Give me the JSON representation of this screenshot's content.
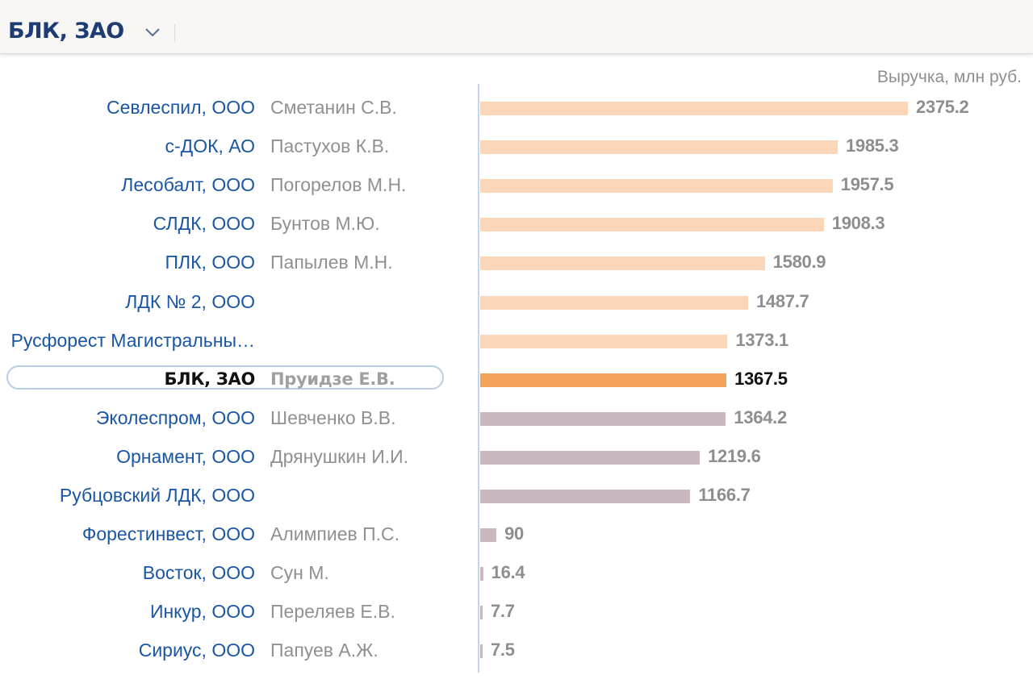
{
  "header": {
    "company_title": "БЛК, ЗАО"
  },
  "chart_data": {
    "type": "bar",
    "orientation": "horizontal",
    "unit_label": "Выручка, млн руб.",
    "xlim": [
      0,
      2375.2
    ],
    "grid": false,
    "highlighted_category": "БЛК, ЗАО",
    "colors": {
      "higher": "#fcd6b9",
      "selected": "#f3a25c",
      "lower": "#c9b8c0"
    },
    "rows": [
      {
        "company": "Севлеспил, ООО",
        "person": "Сметанин С.В.",
        "value": 2375.2,
        "label": "2375.2",
        "group": "higher"
      },
      {
        "company": "с-ДОК, АО",
        "person": "Пастухов К.В.",
        "value": 1985.3,
        "label": "1985.3",
        "group": "higher"
      },
      {
        "company": "Лесобалт, ООО",
        "person": "Погорелов М.Н.",
        "value": 1957.5,
        "label": "1957.5",
        "group": "higher"
      },
      {
        "company": "СЛДК, ООО",
        "person": "Бунтов М.Ю.",
        "value": 1908.3,
        "label": "1908.3",
        "group": "higher"
      },
      {
        "company": "ПЛК, ООО",
        "person": "Папылев М.Н.",
        "value": 1580.9,
        "label": "1580.9",
        "group": "higher"
      },
      {
        "company": "ЛДК № 2, ООО",
        "person": "",
        "value": 1487.7,
        "label": "1487.7",
        "group": "higher"
      },
      {
        "company": "Русфорест Магистральны…",
        "person": "",
        "value": 1373.1,
        "label": "1373.1",
        "group": "higher"
      },
      {
        "company": "БЛК, ЗАО",
        "person": "Пруидзе Е.В.",
        "value": 1367.5,
        "label": "1367.5",
        "group": "selected"
      },
      {
        "company": "Эколеспром, ООО",
        "person": "Шевченко В.В.",
        "value": 1364.2,
        "label": "1364.2",
        "group": "lower"
      },
      {
        "company": "Орнамент, ООО",
        "person": "Дрянушкин И.И.",
        "value": 1219.6,
        "label": "1219.6",
        "group": "lower"
      },
      {
        "company": "Рубцовский ЛДК, ООО",
        "person": "",
        "value": 1166.7,
        "label": "1166.7",
        "group": "lower"
      },
      {
        "company": "Форестинвест, ООО",
        "person": "Алимпиев П.С.",
        "value": 90,
        "label": "90",
        "group": "lower"
      },
      {
        "company": "Восток, ООО",
        "person": "Сун М.",
        "value": 16.4,
        "label": "16.4",
        "group": "lower"
      },
      {
        "company": "Инкур, ООО",
        "person": "Переляев Е.В.",
        "value": 7.7,
        "label": "7.7",
        "group": "lower"
      },
      {
        "company": "Сириус, ООО",
        "person": "Папуев А.Ж.",
        "value": 7.5,
        "label": "7.5",
        "group": "lower"
      }
    ]
  }
}
